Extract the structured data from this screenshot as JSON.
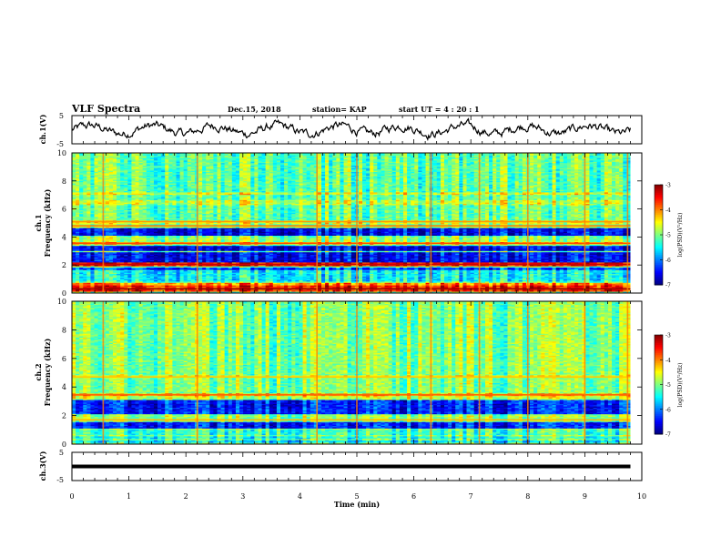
{
  "header": {
    "title": "VLF Spectra",
    "date": "Dec.15, 2018",
    "station": "station= KAP",
    "start": "start  UT =   4 : 20 : 1"
  },
  "chart_data": [
    {
      "type": "line",
      "ylabel": "ch.1(V)",
      "ylim": [
        -5,
        5
      ],
      "yticks": [
        "5",
        "-5"
      ],
      "xlim": [
        0,
        10
      ],
      "x_range": [
        0,
        9.8
      ],
      "y_baseline": 0,
      "y_noise_amplitude": 1.5
    },
    {
      "type": "heatmap",
      "ylabel_top": "ch.1",
      "ylabel": "Frequency  (kHz)",
      "ylim": [
        0,
        10
      ],
      "yticks": [
        "0",
        "2",
        "4",
        "6",
        "8",
        "10"
      ],
      "xlim": [
        0,
        10
      ],
      "x_range": [
        0,
        9.8
      ],
      "colorbar": {
        "label": "log(PSD)(V²/Hz)",
        "ticks": [
          "-3",
          "-4",
          "-5",
          "-6",
          "-7"
        ],
        "range": [
          -7,
          -3
        ]
      },
      "background_level": -5.1,
      "bands": [
        {
          "f": [
            0.05,
            0.5
          ],
          "level": -3.6
        },
        {
          "f": [
            0.55,
            0.75
          ],
          "level": -4.0
        },
        {
          "f": [
            0.8,
            1.6
          ],
          "level": -5.5
        },
        {
          "f": [
            1.6,
            1.85
          ],
          "level": -6.2
        },
        {
          "f": [
            1.95,
            2.15
          ],
          "level": -3.5
        },
        {
          "f": [
            2.2,
            2.9
          ],
          "level": -6.5
        },
        {
          "f": [
            3.0,
            3.4
          ],
          "level": -6.6
        },
        {
          "f": [
            3.5,
            3.62
          ],
          "level": -4.3
        },
        {
          "f": [
            3.65,
            4.0
          ],
          "level": -4.9
        },
        {
          "f": [
            4.05,
            4.65
          ],
          "level": -6.5
        },
        {
          "f": [
            4.65,
            4.85
          ],
          "level": -4.8
        },
        {
          "f": [
            4.9,
            5.2
          ],
          "level": -4.6
        },
        {
          "f": [
            6.3,
            6.6
          ],
          "level": -4.7
        },
        {
          "f": [
            7.0,
            7.2
          ],
          "level": -4.6
        }
      ],
      "lines": [
        {
          "f": 0.3,
          "level": -3.1
        },
        {
          "f": 2.05,
          "level": -3.3
        },
        {
          "f": 3.55,
          "level": -3.8
        },
        {
          "f": 4.8,
          "level": -4.0
        },
        {
          "f": 5.1,
          "level": -4.1
        }
      ],
      "spike_times": [
        0.55,
        2.2,
        4.3,
        5.0,
        6.3,
        7.15,
        8.0,
        9.0,
        9.75
      ]
    },
    {
      "type": "heatmap",
      "ylabel_top": "ch.2",
      "ylabel": "Frequency  (kHz)",
      "ylim": [
        0,
        10
      ],
      "yticks": [
        "0",
        "2",
        "4",
        "6",
        "8",
        "10"
      ],
      "xlim": [
        0,
        10
      ],
      "x_range": [
        0,
        9.8
      ],
      "colorbar": {
        "label": "log(PSD)(V²/Hz)",
        "ticks": [
          "-3",
          "-4",
          "-5",
          "-6",
          "-7"
        ],
        "range": [
          -7,
          -3
        ]
      },
      "background_level": -5.0,
      "bands": [
        {
          "f": [
            0.05,
            0.3
          ],
          "level": -5.6
        },
        {
          "f": [
            0.35,
            0.55
          ],
          "level": -5.4
        },
        {
          "f": [
            0.6,
            1.0
          ],
          "level": -5.3
        },
        {
          "f": [
            1.1,
            1.5
          ],
          "level": -6.4
        },
        {
          "f": [
            1.6,
            1.75
          ],
          "level": -4.8
        },
        {
          "f": [
            1.8,
            2.0
          ],
          "level": -4.9
        },
        {
          "f": [
            2.1,
            3.1
          ],
          "level": -6.4
        },
        {
          "f": [
            3.15,
            3.35
          ],
          "level": -4.7
        },
        {
          "f": [
            3.4,
            3.55
          ],
          "level": -4.2
        },
        {
          "f": [
            4.6,
            4.8
          ],
          "level": -4.6
        }
      ],
      "lines": [
        {
          "f": 1.7,
          "level": -4.2
        },
        {
          "f": 3.45,
          "level": -3.9
        },
        {
          "f": 4.7,
          "level": -4.3
        }
      ],
      "spike_times": [
        0.55,
        2.2,
        4.3,
        5.0,
        6.3,
        7.15,
        8.0,
        9.0,
        9.75
      ]
    },
    {
      "type": "line",
      "ylabel": "ch.3(V)",
      "ylim": [
        -5,
        5
      ],
      "yticks": [
        "5",
        "-5"
      ],
      "xlim": [
        0,
        10
      ],
      "x_range": [
        0,
        9.8
      ],
      "y_baseline": 0,
      "y_noise_amplitude": 0,
      "xlabel": "Time  (min)",
      "xticks": [
        "0",
        "1",
        "2",
        "3",
        "4",
        "5",
        "6",
        "7",
        "8",
        "9",
        "10"
      ]
    }
  ]
}
